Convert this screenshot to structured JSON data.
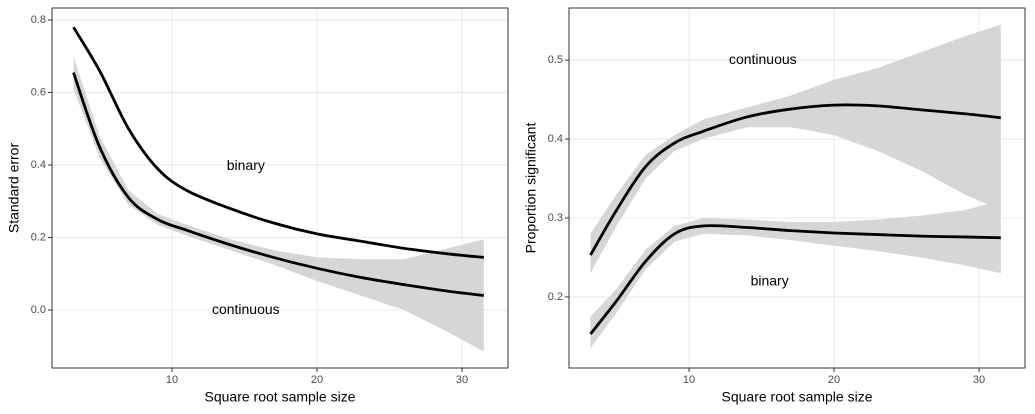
{
  "chart_data": [
    {
      "type": "line",
      "xlabel": "Square root sample size",
      "ylabel": "Standard error",
      "x": [
        3.2,
        5,
        7,
        9,
        11,
        14,
        17,
        20,
        23,
        26,
        29,
        31.5
      ],
      "xlim": [
        1.72,
        33.17
      ],
      "xticks": [
        10,
        20,
        30
      ],
      "ylim": [
        -0.16,
        0.833
      ],
      "yticks": [
        {
          "value": 0,
          "label": "0.0"
        },
        {
          "value": 0.2,
          "label": "0.2"
        },
        {
          "value": 0.4,
          "label": "0.4"
        },
        {
          "value": 0.6,
          "label": "0.6"
        },
        {
          "value": 0.8,
          "label": "0.8"
        }
      ],
      "grid": true,
      "ribbon_color": "#d6d6d6",
      "series": [
        {
          "name": "binary",
          "color": "#000000",
          "values": [
            0.78,
            0.66,
            0.5,
            0.39,
            0.33,
            0.28,
            0.24,
            0.21,
            0.19,
            0.17,
            0.155,
            0.145
          ]
        },
        {
          "name": "continuous",
          "color": "#000000",
          "values": [
            0.655,
            0.45,
            0.31,
            0.25,
            0.22,
            0.18,
            0.145,
            0.115,
            0.09,
            0.07,
            0.052,
            0.04
          ],
          "lower": [
            0.61,
            0.42,
            0.29,
            0.235,
            0.205,
            0.165,
            0.125,
            0.08,
            0.04,
            0.0,
            -0.06,
            -0.115
          ],
          "upper": [
            0.7,
            0.48,
            0.33,
            0.265,
            0.235,
            0.195,
            0.165,
            0.145,
            0.14,
            0.14,
            0.17,
            0.195
          ]
        }
      ]
    },
    {
      "type": "line",
      "xlabel": "Square root sample size",
      "ylabel": "Proportion significant",
      "x": [
        3.2,
        5,
        7,
        9,
        11,
        14,
        17,
        20,
        23,
        26,
        29,
        31.5
      ],
      "xlim": [
        1.72,
        33.17
      ],
      "xticks": [
        10,
        20,
        30
      ],
      "ylim": [
        0.11,
        0.566
      ],
      "yticks": [
        0.2,
        0.3,
        0.4,
        0.5
      ],
      "grid": true,
      "ribbon_color": "#d6d6d6",
      "series": [
        {
          "name": "continuous",
          "color": "#000000",
          "values": [
            0.253,
            0.31,
            0.365,
            0.395,
            0.41,
            0.428,
            0.438,
            0.443,
            0.442,
            0.437,
            0.432,
            0.427
          ],
          "lower": [
            0.23,
            0.29,
            0.35,
            0.385,
            0.4,
            0.415,
            0.415,
            0.405,
            0.385,
            0.36,
            0.33,
            0.31
          ],
          "upper": [
            0.28,
            0.33,
            0.38,
            0.405,
            0.425,
            0.44,
            0.455,
            0.475,
            0.49,
            0.51,
            0.53,
            0.545
          ]
        },
        {
          "name": "binary",
          "color": "#000000",
          "values": [
            0.153,
            0.195,
            0.245,
            0.28,
            0.29,
            0.288,
            0.284,
            0.281,
            0.279,
            0.277,
            0.276,
            0.275
          ],
          "lower": [
            0.135,
            0.18,
            0.235,
            0.27,
            0.28,
            0.278,
            0.272,
            0.265,
            0.258,
            0.25,
            0.24,
            0.23
          ],
          "upper": [
            0.175,
            0.21,
            0.26,
            0.29,
            0.3,
            0.298,
            0.295,
            0.295,
            0.298,
            0.303,
            0.31,
            0.322
          ]
        }
      ]
    }
  ]
}
